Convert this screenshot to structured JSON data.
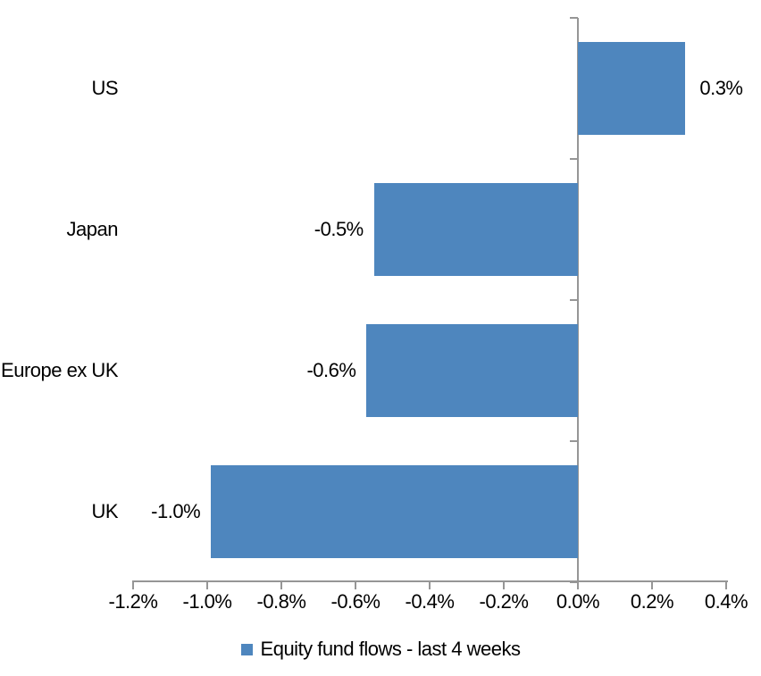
{
  "chart_data": {
    "type": "bar",
    "orientation": "horizontal",
    "title": "",
    "xlabel": "",
    "ylabel": "",
    "categories": [
      "US",
      "Japan",
      "Europe ex UK",
      "UK"
    ],
    "series": [
      {
        "name": "Equity fund flows - last 4 weeks",
        "values": [
          0.3,
          -0.5,
          -0.6,
          -1.0
        ],
        "value_labels": [
          "0.3%",
          "-0.5%",
          "-0.6%",
          "-1.0%"
        ],
        "bar_values_estimated": [
          0.29,
          -0.55,
          -0.57,
          -0.99
        ],
        "color": "#4E86BE"
      }
    ],
    "x_tick_values": [
      -1.2,
      -1.0,
      -0.8,
      -0.6,
      -0.4,
      -0.2,
      0.0,
      0.2,
      0.4
    ],
    "x_tick_labels": [
      "-1.2%",
      "-1.0%",
      "-0.8%",
      "-0.6%",
      "-0.4%",
      "-0.2%",
      "0.0%",
      "0.2%",
      "0.4%"
    ],
    "xlim": [
      -1.2,
      0.4
    ],
    "grid": false,
    "legend_position": "bottom",
    "axis_color": "#969696",
    "background": "#FFFFFF",
    "text_color": "#000000"
  }
}
